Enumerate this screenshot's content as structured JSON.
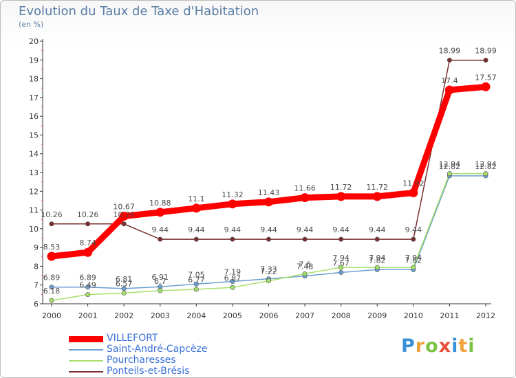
{
  "title": "Evolution du Taux de Taxe d'Habitation",
  "subtitle": "(en %)",
  "logo": {
    "text": "Proxiti",
    "colors": [
      "#3a8fd6",
      "#f2a23a",
      "#7cc243",
      "#e84f3c",
      "#3a8fd6",
      "#f2a23a",
      "#7cc243"
    ]
  },
  "chart_data": {
    "type": "line",
    "x": [
      "2000",
      "2001",
      "2002",
      "2003",
      "2004",
      "2005",
      "2006",
      "2007",
      "2008",
      "2009",
      "2010",
      "2011",
      "2012"
    ],
    "y_ticks": [
      "6",
      "7",
      "8",
      "9",
      "10",
      "11",
      "12",
      "13",
      "14",
      "15",
      "16",
      "17",
      "18",
      "19",
      "20"
    ],
    "ylim": [
      6,
      20
    ],
    "grid": false,
    "legend_position": "bottom-left",
    "series": [
      {
        "name": "VILLEFORT",
        "color": "#ff0000",
        "width": 9,
        "values": [
          8.53,
          8.74,
          10.67,
          10.88,
          11.1,
          11.32,
          11.43,
          11.66,
          11.72,
          11.72,
          11.92,
          17.4,
          17.57
        ],
        "labels": [
          "8.53",
          "8.74",
          "10.67",
          "10.88",
          "11.1",
          "11.32",
          "11.43",
          "11.66",
          "11.72",
          "11.72",
          "11.92",
          "17.4",
          "17.57"
        ]
      },
      {
        "name": "Saint-André-Capcèze",
        "color": "#6b9fd0",
        "width": 1.5,
        "values": [
          6.89,
          6.89,
          6.81,
          6.91,
          7.05,
          7.19,
          7.33,
          7.48,
          7.67,
          7.82,
          7.82,
          12.82,
          12.82
        ],
        "labels": [
          "6.89",
          "6.89",
          "6.81",
          "6.91",
          "7.05",
          "7.19",
          "7.33",
          "7.48",
          "7.67",
          "7.82",
          "7.82",
          "12.82",
          "12.82"
        ]
      },
      {
        "name": "Pourcharesses",
        "color": "#a6e06a",
        "width": 1.5,
        "values": [
          6.18,
          6.49,
          6.57,
          6.7,
          6.77,
          6.87,
          7.22,
          7.6,
          7.94,
          7.94,
          7.94,
          12.94,
          12.94
        ],
        "labels": [
          "6.18",
          "6.49",
          "6.57",
          "6.7",
          "6.77",
          "6.87",
          "7.22",
          "7.6",
          "7.94",
          "7.94",
          "7.94",
          "12.94",
          "12.94"
        ]
      },
      {
        "name": "Ponteils-et-Brésis",
        "color": "#7a2e2e",
        "width": 1.5,
        "values": [
          10.26,
          10.26,
          10.26,
          9.44,
          9.44,
          9.44,
          9.44,
          9.44,
          9.44,
          9.44,
          9.44,
          18.99,
          18.99
        ],
        "labels": [
          "10.26",
          "10.26",
          "10.26",
          "9.44",
          "9.44",
          "9.44",
          "9.44",
          "9.44",
          "9.44",
          "9.44",
          "9.44",
          "18.99",
          "18.99"
        ]
      }
    ]
  }
}
